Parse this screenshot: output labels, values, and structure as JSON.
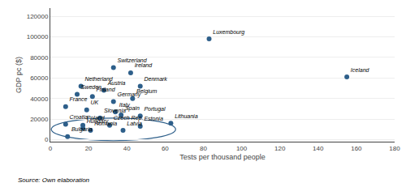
{
  "chart_data": {
    "type": "scatter",
    "x_label": "Tests per thousand people",
    "y_label": "GDP pc ($)",
    "source": "Source: Own elaboration",
    "color": "#2e5f8a",
    "data_labels": true,
    "labels": [
      "Luxembourg",
      "Switzerland",
      "Ireland",
      "Iceland",
      "Netherland",
      "Austria",
      "Denmark",
      "Sweden",
      "Finland",
      "Belgium",
      "Germany",
      "France",
      "UK",
      "Italy",
      "Spain",
      "Portugal",
      "Slovenia",
      "Croatia",
      "Poland",
      "Czech Rep.",
      "Hungary",
      "Romania",
      "Estonia",
      "Latvia",
      "Lithuania",
      "Bulgaria"
    ],
    "x": [
      83,
      33,
      42,
      155,
      16,
      28,
      47,
      14,
      22,
      43,
      33,
      8,
      19,
      34,
      37,
      47,
      26,
      8,
      17,
      31,
      17,
      21,
      47,
      38,
      63,
      9
    ],
    "values": [
      98000,
      70000,
      65000,
      61000,
      52000,
      48000,
      52000,
      44000,
      42000,
      40000,
      37000,
      32000,
      29000,
      27000,
      24000,
      23000,
      21000,
      15000,
      14000,
      14000,
      11000,
      9000,
      13000,
      9000,
      16000,
      3000
    ],
    "ellipse": {
      "center_x": 33,
      "center_y": 10000,
      "width": 65,
      "height": 22000,
      "color": "#2e5f8a"
    },
    "xlim": [
      0,
      180
    ],
    "ylim": [
      -2000,
      128000
    ],
    "xticks": [
      0,
      20,
      40,
      60,
      80,
      100,
      120,
      140,
      160,
      180
    ],
    "yticks": [
      0,
      20000,
      40000,
      60000,
      80000,
      100000,
      120000
    ],
    "grid": "y"
  }
}
